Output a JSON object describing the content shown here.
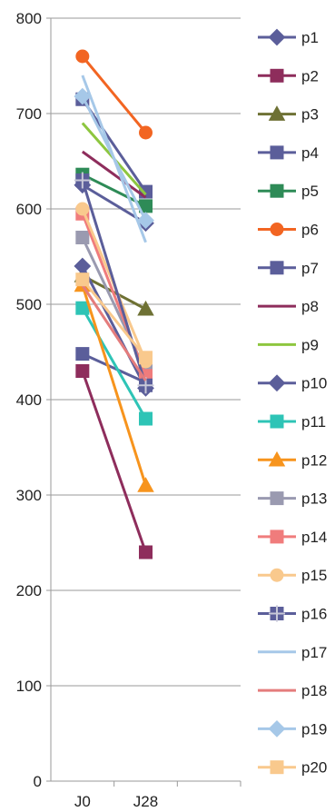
{
  "chart_data": {
    "type": "line",
    "categories": [
      "J0",
      "J28"
    ],
    "ylim": [
      0,
      800
    ],
    "yticks": [
      0,
      100,
      200,
      300,
      400,
      500,
      600,
      700,
      800
    ],
    "grid": "horizontal",
    "legend": "right",
    "series": [
      {
        "name": "p1",
        "values": [
          625,
          585
        ],
        "color": "#5B5E9A",
        "marker": "diamond"
      },
      {
        "name": "p2",
        "values": [
          430,
          240
        ],
        "color": "#8E2D5C",
        "marker": "square"
      },
      {
        "name": "p3",
        "values": [
          530,
          495
        ],
        "color": "#6E7134",
        "marker": "triangle"
      },
      {
        "name": "p4",
        "values": [
          715,
          618
        ],
        "color": "#5B5E9A",
        "marker": "square"
      },
      {
        "name": "p5",
        "values": [
          636,
          603
        ],
        "color": "#2E8B57",
        "marker": "square"
      },
      {
        "name": "p6",
        "values": [
          760,
          680
        ],
        "color": "#F26522",
        "marker": "circle"
      },
      {
        "name": "p7",
        "values": [
          448,
          418
        ],
        "color": "#5B5E9A",
        "marker": "square"
      },
      {
        "name": "p8",
        "values": [
          660,
          612
        ],
        "color": "#8E2D5C",
        "marker": "none"
      },
      {
        "name": "p9",
        "values": [
          690,
          615
        ],
        "color": "#8DC63F",
        "marker": "none"
      },
      {
        "name": "p10",
        "values": [
          540,
          412
        ],
        "color": "#5B5E9A",
        "marker": "diamond"
      },
      {
        "name": "p11",
        "values": [
          496,
          380
        ],
        "color": "#2EC4B6",
        "marker": "square"
      },
      {
        "name": "p12",
        "values": [
          520,
          310
        ],
        "color": "#F7941D",
        "marker": "triangle"
      },
      {
        "name": "p13",
        "values": [
          570,
          430
        ],
        "color": "#9A9AB0",
        "marker": "square"
      },
      {
        "name": "p14",
        "values": [
          595,
          425
        ],
        "color": "#F07C7C",
        "marker": "square"
      },
      {
        "name": "p15",
        "values": [
          600,
          440
        ],
        "color": "#F9C98D",
        "marker": "circle"
      },
      {
        "name": "p16",
        "values": [
          630,
          415
        ],
        "color": "#5B5E9A",
        "marker": "plus"
      },
      {
        "name": "p17",
        "values": [
          740,
          565
        ],
        "color": "#A6C8E8",
        "marker": "none"
      },
      {
        "name": "p18",
        "values": [
          520,
          420
        ],
        "color": "#E47C7C",
        "marker": "none"
      },
      {
        "name": "p19",
        "values": [
          718,
          588
        ],
        "color": "#A6C8E8",
        "marker": "diamond"
      },
      {
        "name": "p20",
        "values": [
          526,
          444
        ],
        "color": "#F9C98D",
        "marker": "square"
      }
    ]
  }
}
